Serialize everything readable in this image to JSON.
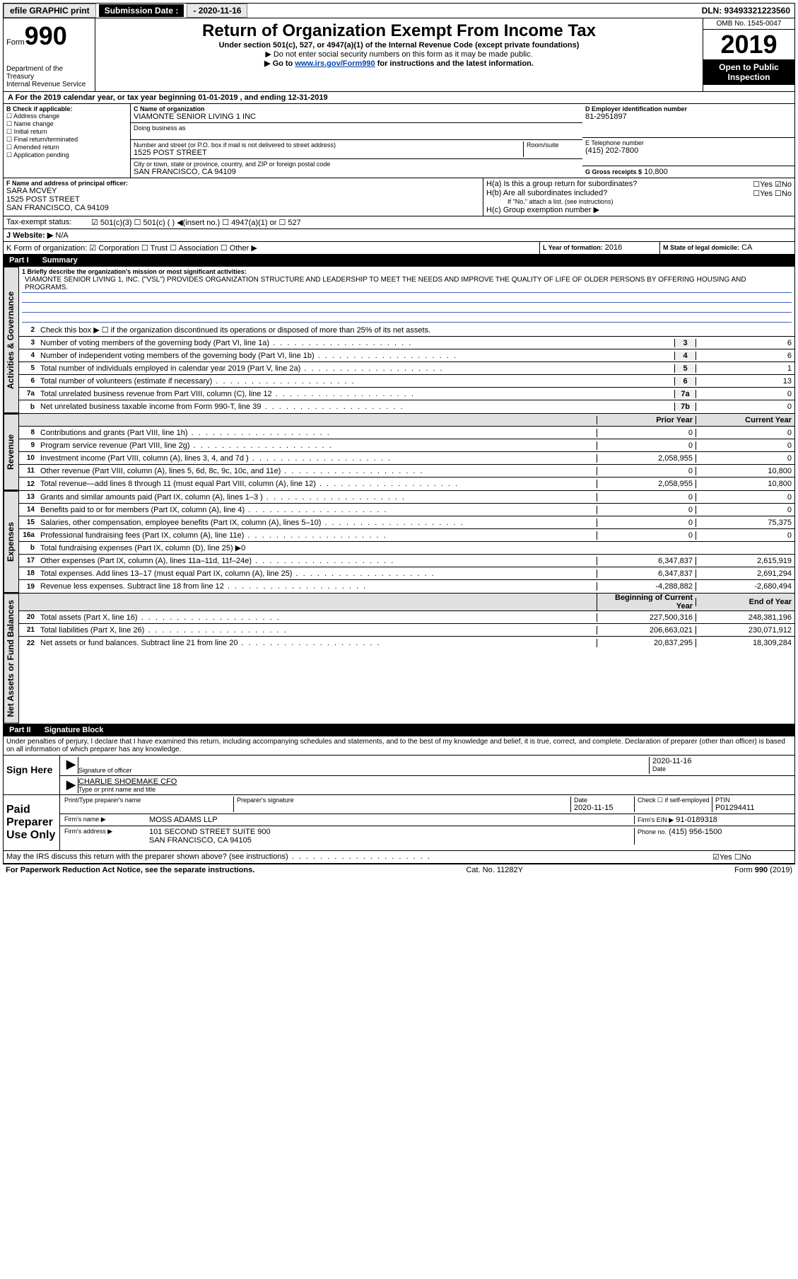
{
  "topbar": {
    "efile": "efile GRAPHIC print",
    "sub_label": "Submission Date :",
    "sub_date": "- 2020-11-16",
    "dln": "DLN: 93493321223560"
  },
  "header": {
    "form_word": "Form",
    "form_num": "990",
    "dept": "Department of the Treasury",
    "irs": "Internal Revenue Service",
    "title": "Return of Organization Exempt From Income Tax",
    "subtitle": "Under section 501(c), 527, or 4947(a)(1) of the Internal Revenue Code (except private foundations)",
    "note1": "▶ Do not enter social security numbers on this form as it may be made public.",
    "note2_pre": "▶ Go to ",
    "note2_link": "www.irs.gov/Form990",
    "note2_post": " for instructions and the latest information.",
    "omb": "OMB No. 1545-0047",
    "year": "2019",
    "open": "Open to Public Inspection"
  },
  "period": "A For the 2019 calendar year, or tax year beginning 01-01-2019    , and ending 12-31-2019",
  "blockB": {
    "title": "B Check if applicable:",
    "items": [
      "Address change",
      "Name change",
      "Initial return",
      "Final return/terminated",
      "Amended return",
      "Application pending"
    ]
  },
  "blockC": {
    "name_label": "C Name of organization",
    "name": "VIAMONTE SENIOR LIVING 1 INC",
    "dba_label": "Doing business as",
    "addr_label": "Number and street (or P.O. box if mail is not delivered to street address)",
    "room_label": "Room/suite",
    "addr": "1525 POST STREET",
    "city_label": "City or town, state or province, country, and ZIP or foreign postal code",
    "city": "SAN FRANCISCO, CA  94109"
  },
  "blockD": {
    "label": "D Employer identification number",
    "value": "81-2951897"
  },
  "blockE": {
    "label": "E Telephone number",
    "value": "(415) 202-7800"
  },
  "blockG": {
    "label": "G Gross receipts $",
    "value": "10,800"
  },
  "blockF": {
    "label": "F Name and address of principal officer:",
    "name": "SARA MCVEY",
    "addr1": "1525 POST STREET",
    "addr2": "SAN FRANCISCO, CA  94109"
  },
  "blockH": {
    "a": "H(a)  Is this a group return for subordinates?",
    "a_ans": "☐Yes ☑No",
    "b": "H(b)  Are all subordinates included?",
    "b_ans": "☐Yes ☐No",
    "b_note": "If \"No,\" attach a list. (see instructions)",
    "c": "H(c)  Group exemption number ▶"
  },
  "taxExempt": {
    "label": "Tax-exempt status:",
    "opts": "☑ 501(c)(3)   ☐ 501(c) (  ) ◀(insert no.)   ☐ 4947(a)(1) or  ☐ 527"
  },
  "website": {
    "label": "J  Website: ▶",
    "value": "N/A"
  },
  "formOrg": "K Form of organization:  ☑ Corporation  ☐ Trust  ☐ Association  ☐ Other ▶",
  "yearFormed": {
    "label": "L Year of formation:",
    "value": "2016"
  },
  "domicile": {
    "label": "M State of legal domicile:",
    "value": "CA"
  },
  "part1": {
    "label": "Part I",
    "title": "Summary"
  },
  "summary": {
    "l1_label": "1  Briefly describe the organization's mission or most significant activities:",
    "l1_text": "VIAMONTE SENIOR LIVING 1, INC. (\"VSL\") PROVIDES ORGANIZATION STRUCTURE AND LEADERSHIP TO MEET THE NEEDS AND IMPROVE THE QUALITY OF LIFE OF OLDER PERSONS BY OFFERING HOUSING AND PROGRAMS.",
    "l2": "Check this box ▶ ☐  if the organization discontinued its operations or disposed of more than 25% of its net assets.",
    "lines_ag": [
      {
        "n": "3",
        "t": "Number of voting members of the governing body (Part VI, line 1a)",
        "b": "3",
        "v": "6"
      },
      {
        "n": "4",
        "t": "Number of independent voting members of the governing body (Part VI, line 1b)",
        "b": "4",
        "v": "6"
      },
      {
        "n": "5",
        "t": "Total number of individuals employed in calendar year 2019 (Part V, line 2a)",
        "b": "5",
        "v": "1"
      },
      {
        "n": "6",
        "t": "Total number of volunteers (estimate if necessary)",
        "b": "6",
        "v": "13"
      },
      {
        "n": "7a",
        "t": "Total unrelated business revenue from Part VIII, column (C), line 12",
        "b": "7a",
        "v": "0"
      },
      {
        "n": "b",
        "t": "Net unrelated business taxable income from Form 990-T, line 39",
        "b": "7b",
        "v": "0"
      }
    ],
    "col_prior": "Prior Year",
    "col_current": "Current Year",
    "revenue": [
      {
        "n": "8",
        "t": "Contributions and grants (Part VIII, line 1h)",
        "p": "0",
        "c": "0"
      },
      {
        "n": "9",
        "t": "Program service revenue (Part VIII, line 2g)",
        "p": "0",
        "c": "0"
      },
      {
        "n": "10",
        "t": "Investment income (Part VIII, column (A), lines 3, 4, and 7d )",
        "p": "2,058,955",
        "c": "0"
      },
      {
        "n": "11",
        "t": "Other revenue (Part VIII, column (A), lines 5, 6d, 8c, 9c, 10c, and 11e)",
        "p": "0",
        "c": "10,800"
      },
      {
        "n": "12",
        "t": "Total revenue—add lines 8 through 11 (must equal Part VIII, column (A), line 12)",
        "p": "2,058,955",
        "c": "10,800"
      }
    ],
    "expenses": [
      {
        "n": "13",
        "t": "Grants and similar amounts paid (Part IX, column (A), lines 1–3 )",
        "p": "0",
        "c": "0"
      },
      {
        "n": "14",
        "t": "Benefits paid to or for members (Part IX, column (A), line 4)",
        "p": "0",
        "c": "0"
      },
      {
        "n": "15",
        "t": "Salaries, other compensation, employee benefits (Part IX, column (A), lines 5–10)",
        "p": "0",
        "c": "75,375"
      },
      {
        "n": "16a",
        "t": "Professional fundraising fees (Part IX, column (A), line 11e)",
        "p": "0",
        "c": "0"
      },
      {
        "n": "b",
        "t": "Total fundraising expenses (Part IX, column (D), line 25) ▶0",
        "p": "",
        "c": "",
        "shade": true
      },
      {
        "n": "17",
        "t": "Other expenses (Part IX, column (A), lines 11a–11d, 11f–24e)",
        "p": "6,347,837",
        "c": "2,615,919"
      },
      {
        "n": "18",
        "t": "Total expenses. Add lines 13–17 (must equal Part IX, column (A), line 25)",
        "p": "6,347,837",
        "c": "2,691,294"
      },
      {
        "n": "19",
        "t": "Revenue less expenses. Subtract line 18 from line 12",
        "p": "-4,288,882",
        "c": "-2,680,494"
      }
    ],
    "col_begin": "Beginning of Current Year",
    "col_end": "End of Year",
    "netassets": [
      {
        "n": "20",
        "t": "Total assets (Part X, line 16)",
        "p": "227,500,316",
        "c": "248,381,196"
      },
      {
        "n": "21",
        "t": "Total liabilities (Part X, line 26)",
        "p": "206,663,021",
        "c": "230,071,912"
      },
      {
        "n": "22",
        "t": "Net assets or fund balances. Subtract line 21 from line 20",
        "p": "20,837,295",
        "c": "18,309,284"
      }
    ]
  },
  "vtabs": {
    "ag": "Activities & Governance",
    "rev": "Revenue",
    "exp": "Expenses",
    "na": "Net Assets or Fund Balances"
  },
  "part2": {
    "label": "Part II",
    "title": "Signature Block"
  },
  "penalty": "Under penalties of perjury, I declare that I have examined this return, including accompanying schedules and statements, and to the best of my knowledge and belief, it is true, correct, and complete. Declaration of preparer (other than officer) is based on all information of which preparer has any knowledge.",
  "sign": {
    "here": "Sign Here",
    "sig_label": "Signature of officer",
    "date_label": "Date",
    "date": "2020-11-16",
    "name": "CHARLIE SHOEMAKE CFO",
    "name_label": "Type or print name and title"
  },
  "paid": {
    "title": "Paid Preparer Use Only",
    "col_name": "Print/Type preparer's name",
    "col_sig": "Preparer's signature",
    "col_date": "Date",
    "date": "2020-11-15",
    "check": "Check ☐ if self-employed",
    "ptin_label": "PTIN",
    "ptin": "P01294411",
    "firm_label": "Firm's name    ▶",
    "firm": "MOSS ADAMS LLP",
    "ein_label": "Firm's EIN ▶",
    "ein": "91-0189318",
    "addr_label": "Firm's address ▶",
    "addr1": "101 SECOND STREET SUITE 900",
    "addr2": "SAN FRANCISCO, CA  94105",
    "phone_label": "Phone no.",
    "phone": "(415) 956-1500"
  },
  "discuss": {
    "text": "May the IRS discuss this return with the preparer shown above? (see instructions)",
    "ans": "☑Yes ☐No"
  },
  "footer": {
    "left": "For Paperwork Reduction Act Notice, see the separate instructions.",
    "mid": "Cat. No. 11282Y",
    "right": "Form 990 (2019)"
  }
}
